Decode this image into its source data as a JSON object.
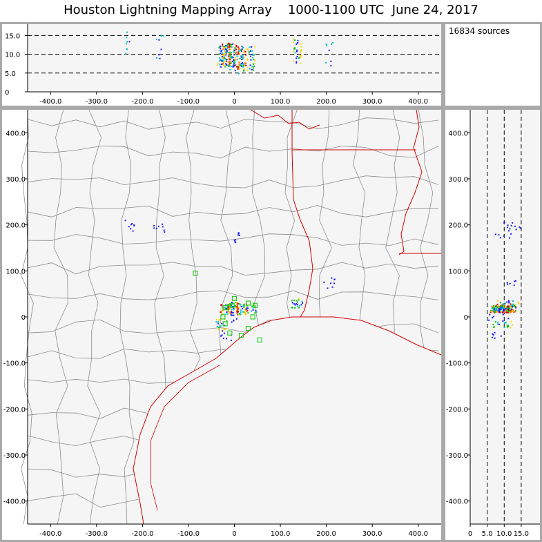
{
  "title": "Houston Lightning Mapping Array    1000-1100 UTC  June 24, 2017",
  "source_count": "16834 sources",
  "axes": {
    "x_ticks": [
      "-400.0",
      "-300.0",
      "-200.0",
      "-100.0",
      "0",
      "100.0",
      "200.0",
      "300.0",
      "400.0"
    ],
    "y_ticks": [
      "400.0",
      "300.0",
      "200.0",
      "100.0",
      "0",
      "-100.0",
      "-200.0",
      "-300.0",
      "-400.0"
    ],
    "alt_ticks": [
      "15.0",
      "10.0",
      "5.0",
      "0"
    ],
    "side_x_ticks": [
      "0",
      "5.0",
      "10.0",
      "15.0"
    ]
  },
  "colors": {
    "background": "#a9a9a9",
    "plot_bg": "#f5f5f5",
    "county_lines": "#8c8c8c",
    "state_coast_lines": "#d00000",
    "station_markers": "#22cc22"
  },
  "chart_data": {
    "type": "scatter",
    "x_range_km": [
      -450,
      450
    ],
    "y_range_km": [
      -450,
      450
    ],
    "alt_range_km": [
      0,
      18
    ],
    "stations_km": [
      [
        -85,
        95
      ],
      [
        -25,
        0
      ],
      [
        -20,
        20
      ],
      [
        -5,
        25
      ],
      [
        0,
        40
      ],
      [
        -20,
        -15
      ],
      [
        -10,
        -35
      ],
      [
        15,
        -40
      ],
      [
        30,
        -25
      ],
      [
        30,
        30
      ],
      [
        45,
        25
      ],
      [
        55,
        -50
      ],
      [
        40,
        0
      ]
    ],
    "source_clusters_km": [
      {
        "x": -20,
        "y": 18,
        "alt": 10,
        "intensity": "high"
      },
      {
        "x": -5,
        "y": 22,
        "alt": 10,
        "intensity": "high"
      },
      {
        "x": 15,
        "y": 18,
        "alt": 9,
        "intensity": "high"
      },
      {
        "x": 35,
        "y": 18,
        "alt": 9,
        "intensity": "medium"
      },
      {
        "x": -30,
        "y": -15,
        "alt": 9,
        "intensity": "medium"
      },
      {
        "x": 0,
        "y": 0,
        "alt": 8,
        "intensity": "low"
      },
      {
        "x": -20,
        "y": -40,
        "alt": 9,
        "intensity": "low"
      },
      {
        "x": 135,
        "y": 30,
        "alt": 11,
        "intensity": "medium"
      },
      {
        "x": 205,
        "y": 75,
        "alt": 10,
        "intensity": "low"
      },
      {
        "x": -2,
        "y": 175,
        "alt": 10,
        "intensity": "low"
      },
      {
        "x": -230,
        "y": 200,
        "alt": 13,
        "intensity": "low"
      },
      {
        "x": -165,
        "y": 195,
        "alt": 12,
        "intensity": "low"
      }
    ]
  }
}
